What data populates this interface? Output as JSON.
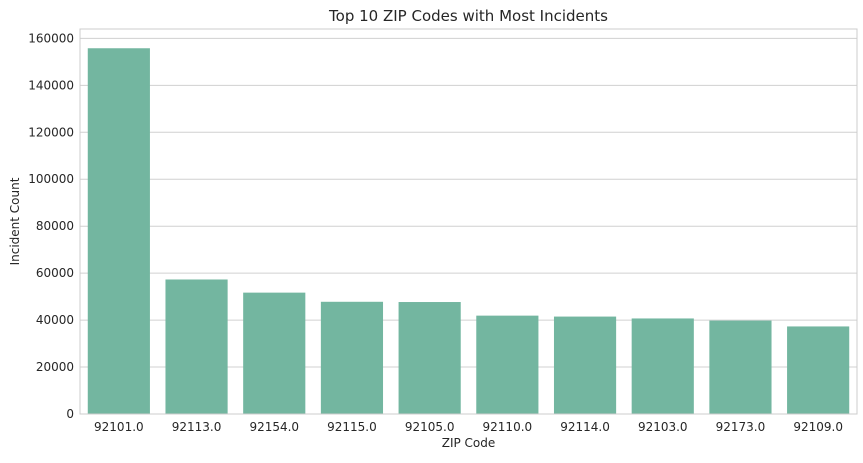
{
  "colors": {
    "bar": "#73b6a0",
    "grid": "#d0d0d0",
    "text": "#262626",
    "background": "#ffffff"
  },
  "chart_data": {
    "type": "bar",
    "title": "Top 10 ZIP Codes with Most Incidents",
    "xlabel": "ZIP Code",
    "ylabel": "Incident Count",
    "categories": [
      "92101.0",
      "92113.0",
      "92154.0",
      "92115.0",
      "92105.0",
      "92110.0",
      "92114.0",
      "92103.0",
      "92173.0",
      "92109.0"
    ],
    "values": [
      155800,
      57300,
      51700,
      47800,
      47700,
      41900,
      41500,
      40700,
      39800,
      37300
    ],
    "ylim": [
      0,
      164000
    ],
    "yticks": [
      "0",
      "20000",
      "40000",
      "60000",
      "80000",
      "100000",
      "120000",
      "140000",
      "160000"
    ],
    "ytick_values": [
      0,
      20000,
      40000,
      60000,
      80000,
      100000,
      120000,
      140000,
      160000
    ],
    "grid": "horizontal",
    "legend": "none"
  }
}
